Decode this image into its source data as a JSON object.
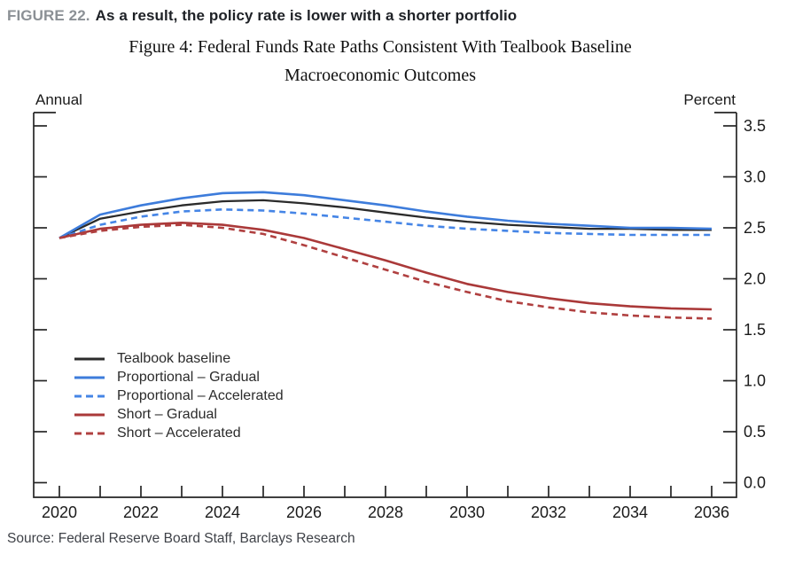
{
  "page": {
    "figure_label": "FIGURE 22.",
    "figure_headline": "As a result, the policy rate is lower with a shorter portfolio",
    "source": "Source: Federal Reserve Board Staff, Barclays Research"
  },
  "chart_data": {
    "type": "line",
    "title_line1": "Figure 4: Federal Funds Rate Paths Consistent With Tealbook Baseline",
    "title_line2": "Macroeconomic Outcomes",
    "left_axis_unit": "Annual",
    "right_axis_unit": "Percent",
    "x": [
      2020,
      2021,
      2022,
      2023,
      2024,
      2025,
      2026,
      2027,
      2028,
      2029,
      2030,
      2031,
      2032,
      2033,
      2034,
      2035,
      2036
    ],
    "x_tick_labels": [
      "2020",
      "2022",
      "2024",
      "2026",
      "2028",
      "2030",
      "2032",
      "2034",
      "2036"
    ],
    "y_tick_labels": [
      "3.5",
      "3.0",
      "2.5",
      "2.0",
      "1.5",
      "1.0",
      "0.5",
      "0.0"
    ],
    "xlim": [
      2019.4,
      2036.6
    ],
    "ylim": [
      -0.14,
      3.63
    ],
    "grid": false,
    "legend_position": "inside-lower-left",
    "axis_color": "#262626",
    "series": [
      {
        "name": "Tealbook baseline",
        "color": "#2b2b2b",
        "dash": false,
        "values": [
          2.4,
          2.59,
          2.66,
          2.72,
          2.76,
          2.77,
          2.74,
          2.7,
          2.65,
          2.6,
          2.56,
          2.53,
          2.51,
          2.49,
          2.49,
          2.48,
          2.48
        ]
      },
      {
        "name": "Proportional – Gradual",
        "color": "#3d7cdb",
        "dash": false,
        "values": [
          2.4,
          2.63,
          2.72,
          2.79,
          2.84,
          2.85,
          2.82,
          2.77,
          2.72,
          2.66,
          2.61,
          2.57,
          2.54,
          2.52,
          2.5,
          2.5,
          2.49
        ]
      },
      {
        "name": "Proportional – Accelerated",
        "color": "#4585e6",
        "dash": true,
        "values": [
          2.4,
          2.53,
          2.61,
          2.66,
          2.68,
          2.67,
          2.64,
          2.6,
          2.56,
          2.52,
          2.49,
          2.47,
          2.45,
          2.44,
          2.43,
          2.43,
          2.43
        ]
      },
      {
        "name": "Short – Gradual",
        "color": "#aa3939",
        "dash": false,
        "values": [
          2.4,
          2.49,
          2.53,
          2.55,
          2.53,
          2.48,
          2.4,
          2.29,
          2.18,
          2.06,
          1.95,
          1.87,
          1.81,
          1.76,
          1.73,
          1.71,
          1.7
        ]
      },
      {
        "name": "Short – Accelerated",
        "color": "#b04040",
        "dash": true,
        "values": [
          2.4,
          2.47,
          2.51,
          2.53,
          2.5,
          2.44,
          2.33,
          2.21,
          2.09,
          1.97,
          1.87,
          1.78,
          1.72,
          1.67,
          1.64,
          1.62,
          1.61
        ]
      }
    ]
  }
}
